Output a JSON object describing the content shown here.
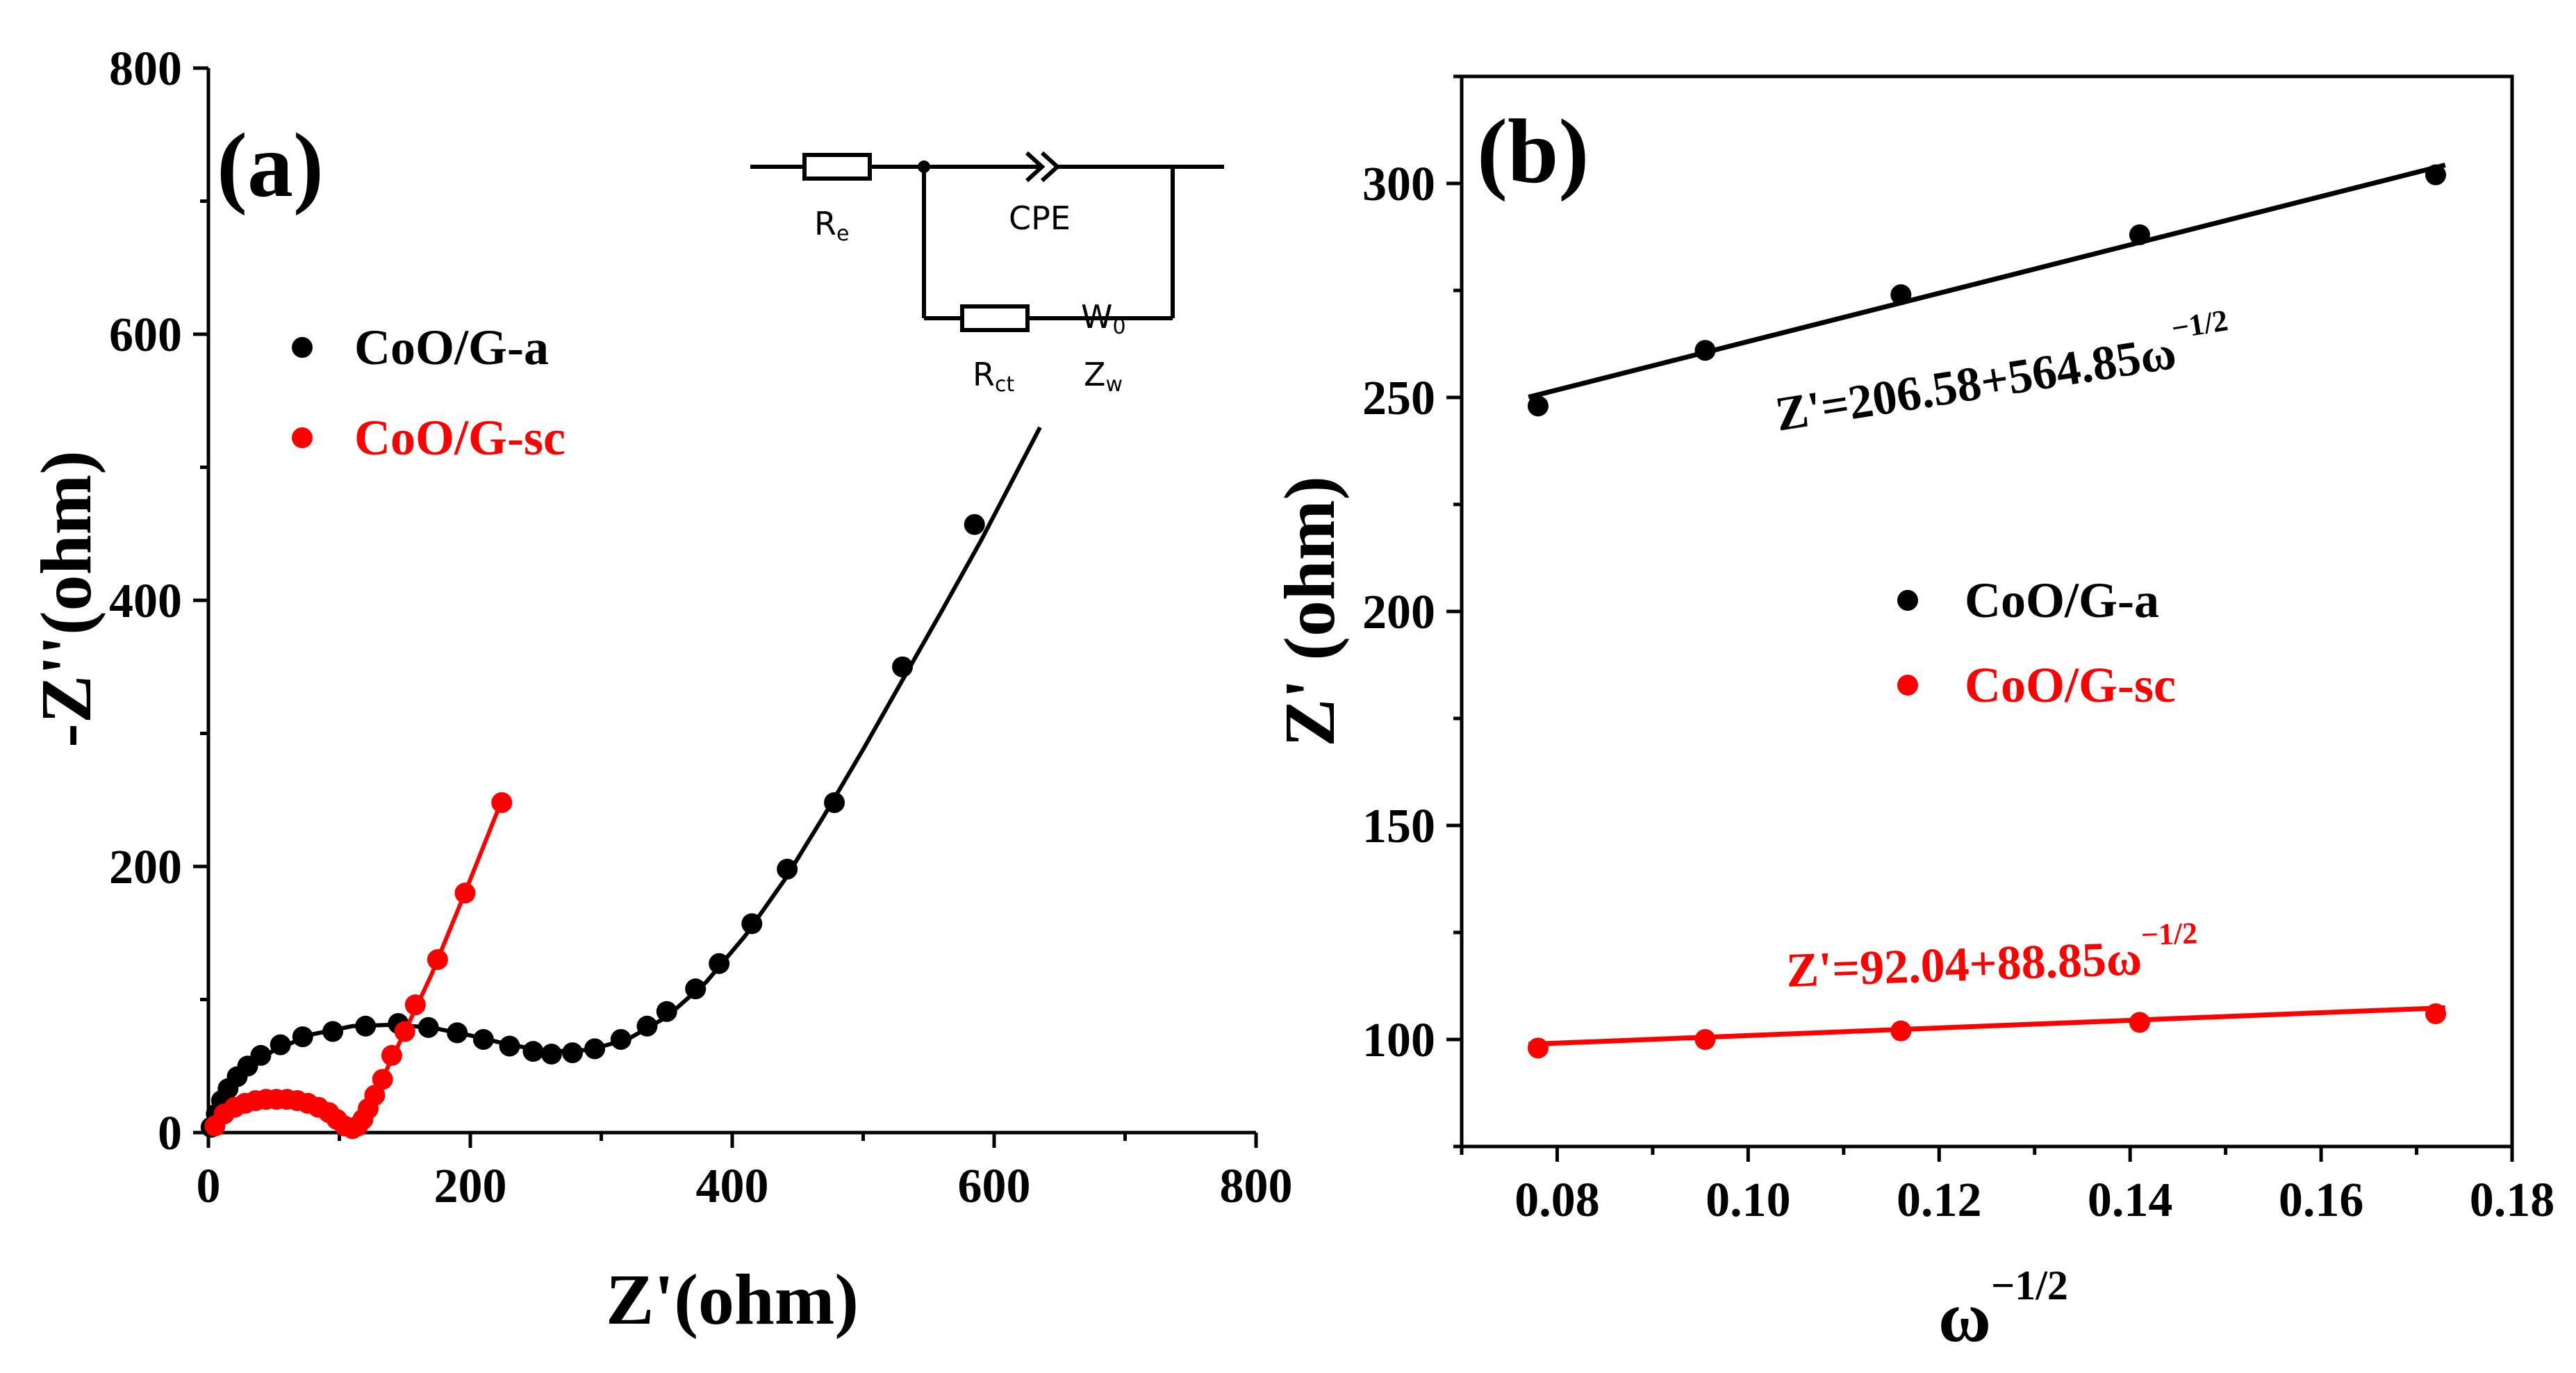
{
  "colors": {
    "series_a": "#000000",
    "series_b": "#ff0000"
  },
  "chart_data": [
    {
      "panel": "(a)",
      "type": "scatter",
      "xlabel": "Z'(ohm)",
      "ylabel": "-Z''(ohm)",
      "xlim": [
        0,
        800
      ],
      "ylim": [
        0,
        800
      ],
      "x_ticks": [
        0,
        200,
        400,
        600,
        800
      ],
      "y_ticks": [
        0,
        200,
        400,
        600,
        800
      ],
      "legend": {
        "position": "top-left",
        "entries": [
          "CoO/G-a",
          "CoO/G-sc"
        ]
      },
      "circuit": {
        "re": "R",
        "re_sub": "e",
        "cpe": "CPE",
        "rct": "R",
        "rct_sub": "ct",
        "w0": "W",
        "w0_sub": "0",
        "zw": "Z",
        "zw_sub": "w"
      },
      "series": [
        {
          "name": "CoO/G-a",
          "color": "#000000",
          "points": [
            [
              2,
              4
            ],
            [
              6,
              14
            ],
            [
              10,
              24
            ],
            [
              15,
              33
            ],
            [
              22,
              42
            ],
            [
              30,
              50
            ],
            [
              40,
              58
            ],
            [
              55,
              66
            ],
            [
              72,
              72
            ],
            [
              95,
              76
            ],
            [
              120,
              80
            ],
            [
              145,
              82
            ],
            [
              168,
              79
            ],
            [
              190,
              75
            ],
            [
              210,
              70
            ],
            [
              230,
              65
            ],
            [
              248,
              61
            ],
            [
              262,
              59
            ],
            [
              278,
              60
            ],
            [
              295,
              63
            ],
            [
              315,
              70
            ],
            [
              335,
              80
            ],
            [
              350,
              91
            ],
            [
              372,
              108
            ],
            [
              390,
              127
            ],
            [
              415,
              157
            ],
            [
              442,
              198
            ],
            [
              478,
              248
            ],
            [
              530,
              350
            ],
            [
              585,
              457
            ]
          ],
          "fit": [
            [
              2,
              4
            ],
            [
              10,
              24
            ],
            [
              25,
              44
            ],
            [
              50,
              62
            ],
            [
              80,
              74
            ],
            [
              110,
              80
            ],
            [
              140,
              81
            ],
            [
              170,
              79
            ],
            [
              200,
              73
            ],
            [
              230,
              66
            ],
            [
              260,
              61
            ],
            [
              290,
              62
            ],
            [
              320,
              70
            ],
            [
              350,
              87
            ],
            [
              380,
              113
            ],
            [
              410,
              148
            ],
            [
              440,
              190
            ],
            [
              470,
              238
            ],
            [
              500,
              288
            ],
            [
              530,
              340
            ],
            [
              560,
              392
            ],
            [
              590,
              445
            ],
            [
              635,
              530
            ]
          ]
        },
        {
          "name": "CoO/G-sc",
          "color": "#ff0000",
          "points": [
            [
              5,
              5
            ],
            [
              12,
              14
            ],
            [
              20,
              19
            ],
            [
              28,
              22
            ],
            [
              36,
              24
            ],
            [
              44,
              25
            ],
            [
              52,
              25
            ],
            [
              60,
              25
            ],
            [
              68,
              24
            ],
            [
              76,
              22
            ],
            [
              84,
              19
            ],
            [
              92,
              15
            ],
            [
              98,
              10
            ],
            [
              104,
              5
            ],
            [
              110,
              3
            ],
            [
              114,
              5
            ],
            [
              118,
              10
            ],
            [
              122,
              18
            ],
            [
              127,
              28
            ],
            [
              133,
              40
            ],
            [
              140,
              58
            ],
            [
              150,
              76
            ],
            [
              158,
              96
            ],
            [
              175,
              130
            ],
            [
              196,
              180
            ],
            [
              224,
              248
            ]
          ],
          "fit": [
            [
              4,
              4
            ],
            [
              15,
              16
            ],
            [
              30,
              23
            ],
            [
              50,
              25
            ],
            [
              70,
              24
            ],
            [
              88,
              18
            ],
            [
              100,
              9
            ],
            [
              108,
              4
            ],
            [
              112,
              3
            ],
            [
              118,
              10
            ],
            [
              125,
              25
            ],
            [
              135,
              45
            ],
            [
              150,
              76
            ],
            [
              170,
              118
            ],
            [
              195,
              178
            ],
            [
              225,
              252
            ]
          ]
        }
      ]
    },
    {
      "panel": "(b)",
      "type": "scatter",
      "xlabel": "ω",
      "xlabel_sup": "−1/2",
      "ylabel": "Z' (ohm)",
      "xlim": [
        0.07,
        0.18
      ],
      "ylim": [
        75,
        325
      ],
      "x_ticks": [
        0.08,
        0.1,
        0.12,
        0.14,
        0.16,
        0.18
      ],
      "x_tick_labels": [
        "0.08",
        "0.10",
        "0.12",
        "0.14",
        "0.16",
        "0.18"
      ],
      "y_ticks": [
        100,
        150,
        200,
        250,
        300
      ],
      "legend": {
        "position": "center",
        "entries": [
          "CoO/G-a",
          "CoO/G-sc"
        ]
      },
      "series": [
        {
          "name": "CoO/G-a",
          "color": "#000000",
          "x": [
            0.078,
            0.0955,
            0.116,
            0.141,
            0.172
          ],
          "y": [
            248,
            261,
            274,
            288,
            302
          ],
          "fit": {
            "intercept": 206.58,
            "slope": 564.85
          },
          "equation": "Z'=206.58+564.85ω",
          "equation_sup": "−1/2"
        },
        {
          "name": "CoO/G-sc",
          "color": "#ff0000",
          "x": [
            0.078,
            0.0955,
            0.116,
            0.141,
            0.172
          ],
          "y": [
            98,
            100,
            102,
            104,
            106
          ],
          "fit": {
            "intercept": 92.04,
            "slope": 88.85
          },
          "equation": "Z'=92.04+88.85ω",
          "equation_sup": "−1/2"
        }
      ]
    }
  ]
}
